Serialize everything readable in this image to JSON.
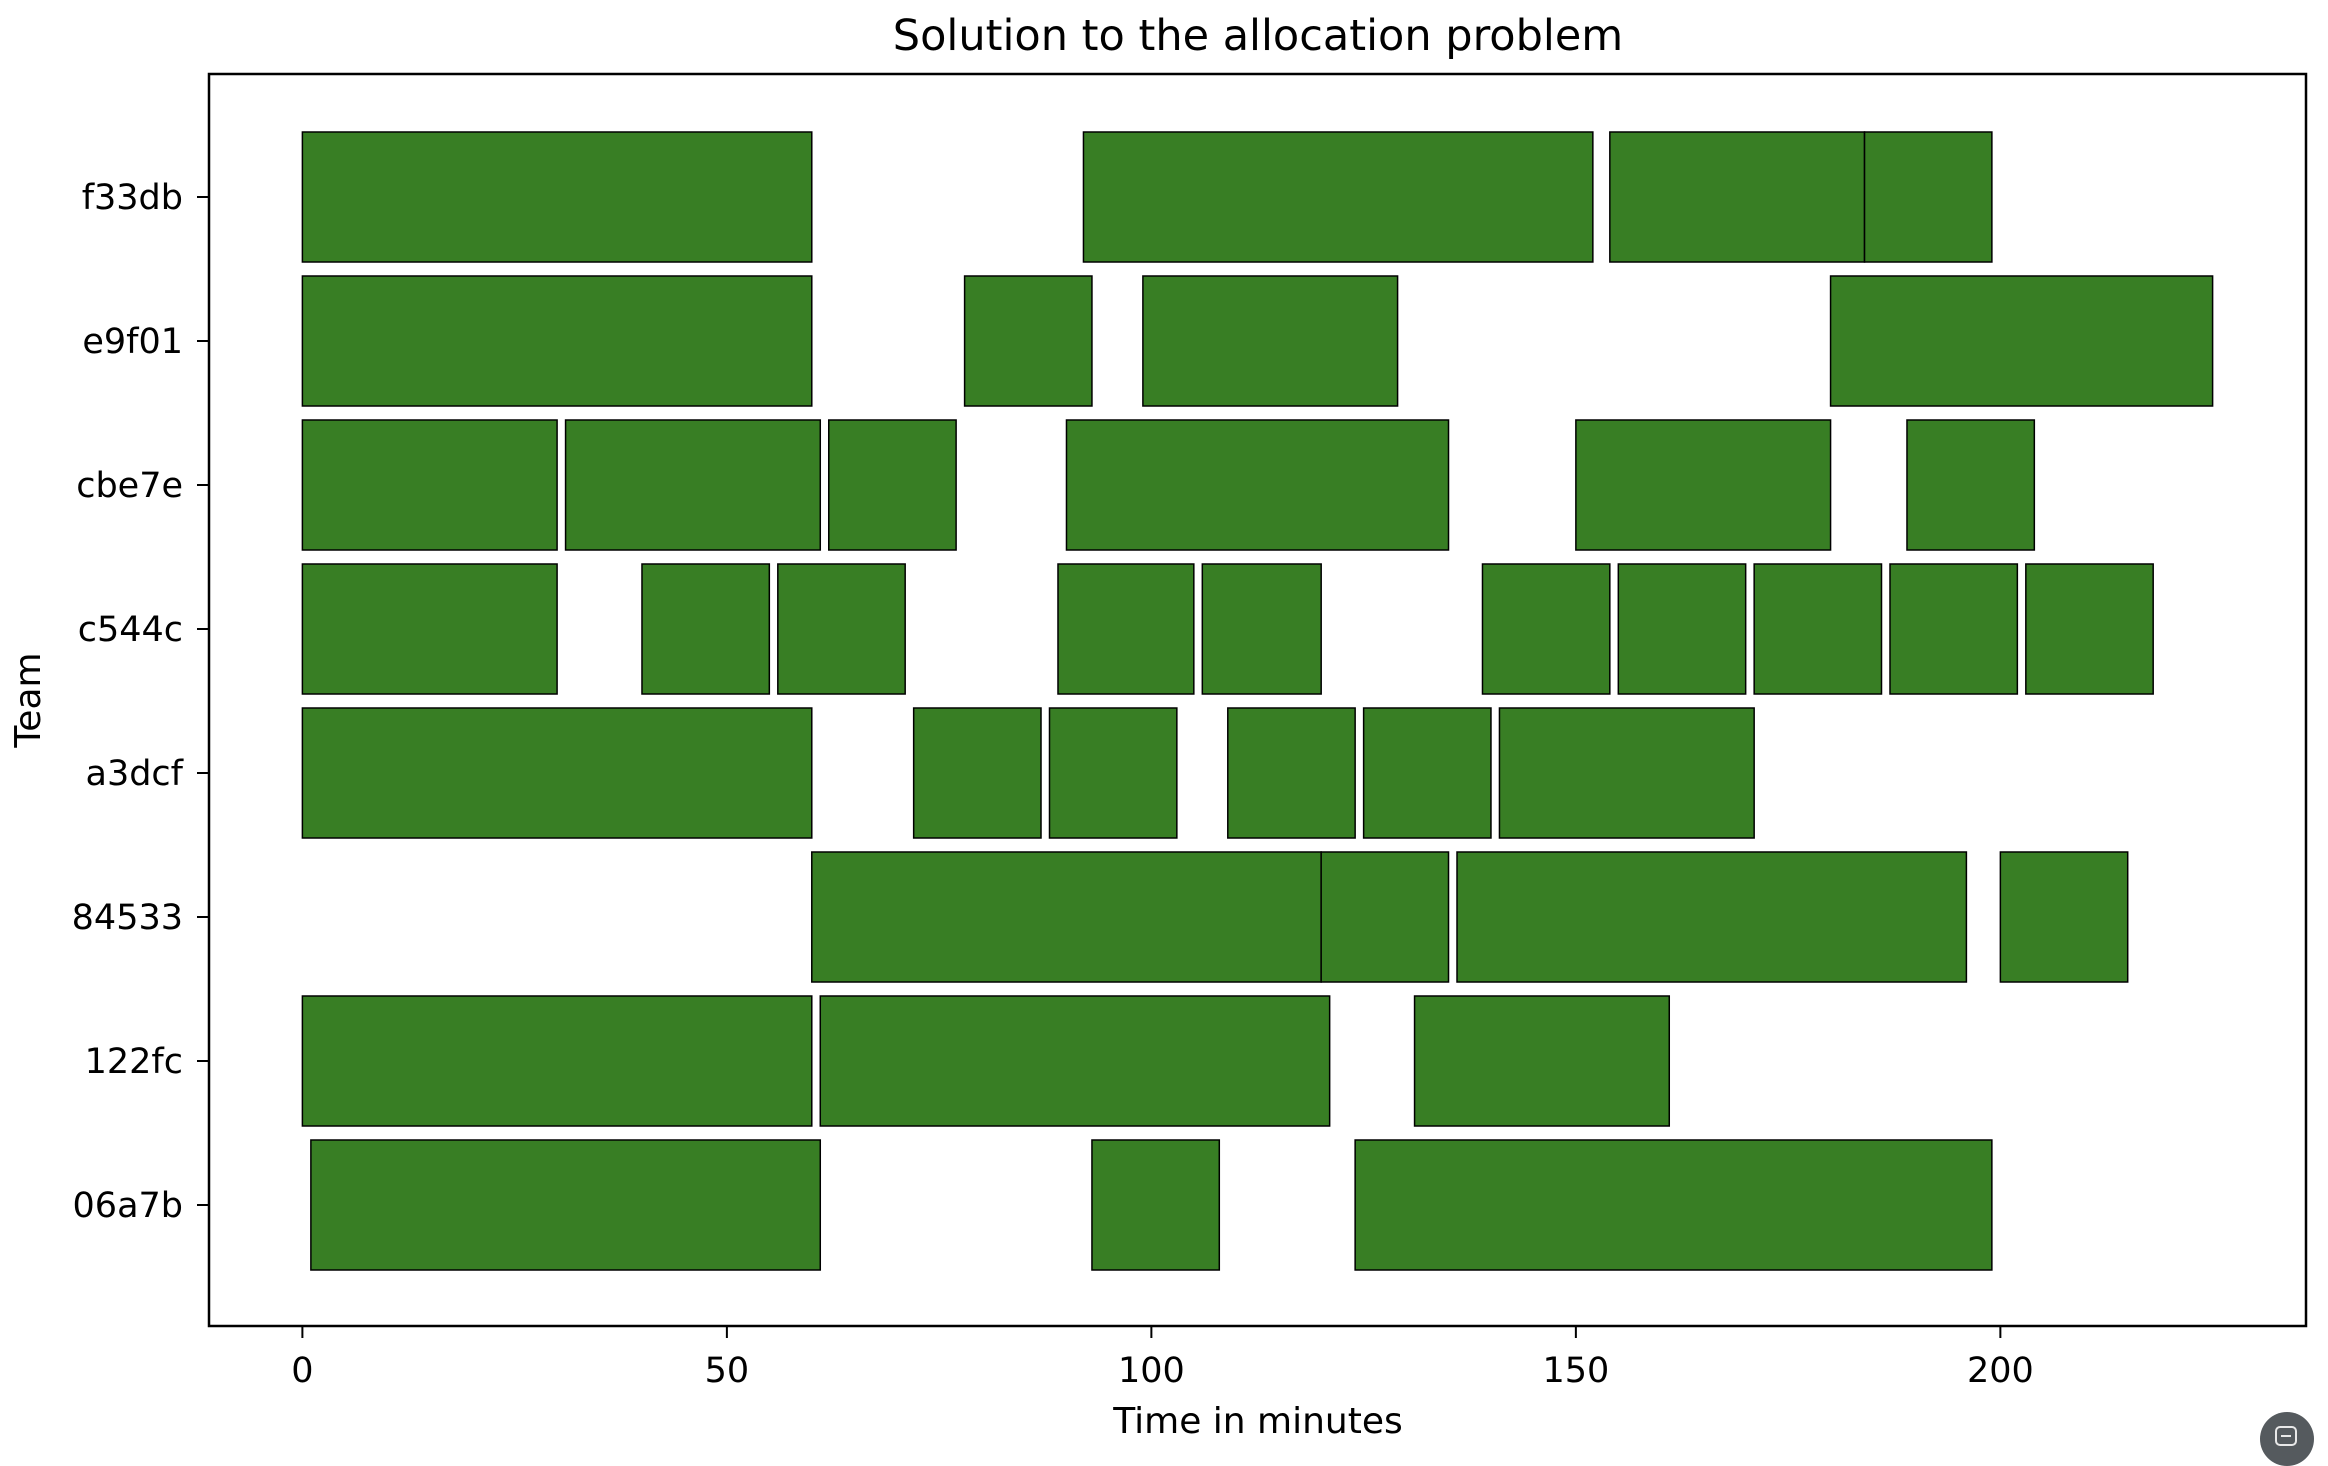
{
  "chart_data": {
    "type": "gantt",
    "title": "Solution to the allocation problem",
    "xlabel": "Time in minutes",
    "ylabel": "Team",
    "xlim": [
      -11,
      236
    ],
    "xticks": [
      0,
      50,
      100,
      150,
      200
    ],
    "categories": [
      "f33db",
      "e9f01",
      "cbe7e",
      "c544c",
      "a3dcf",
      "84533",
      "122fc",
      "06a7b"
    ],
    "bar_color": "#387e24",
    "edge_color": "#000000",
    "grid": false,
    "legend": "none",
    "tasks": [
      {
        "team": "f33db",
        "start": 0,
        "end": 60
      },
      {
        "team": "f33db",
        "start": 92,
        "end": 152
      },
      {
        "team": "f33db",
        "start": 154,
        "end": 184
      },
      {
        "team": "f33db",
        "start": 184,
        "end": 199
      },
      {
        "team": "e9f01",
        "start": 0,
        "end": 60
      },
      {
        "team": "e9f01",
        "start": 78,
        "end": 93
      },
      {
        "team": "e9f01",
        "start": 99,
        "end": 129
      },
      {
        "team": "e9f01",
        "start": 180,
        "end": 225
      },
      {
        "team": "cbe7e",
        "start": 0,
        "end": 30
      },
      {
        "team": "cbe7e",
        "start": 31,
        "end": 61
      },
      {
        "team": "cbe7e",
        "start": 62,
        "end": 77
      },
      {
        "team": "cbe7e",
        "start": 90,
        "end": 135
      },
      {
        "team": "cbe7e",
        "start": 150,
        "end": 180
      },
      {
        "team": "cbe7e",
        "start": 189,
        "end": 204
      },
      {
        "team": "c544c",
        "start": 0,
        "end": 30
      },
      {
        "team": "c544c",
        "start": 40,
        "end": 55
      },
      {
        "team": "c544c",
        "start": 56,
        "end": 71
      },
      {
        "team": "c544c",
        "start": 89,
        "end": 105
      },
      {
        "team": "c544c",
        "start": 106,
        "end": 120
      },
      {
        "team": "c544c",
        "start": 139,
        "end": 154
      },
      {
        "team": "c544c",
        "start": 155,
        "end": 170
      },
      {
        "team": "c544c",
        "start": 171,
        "end": 186
      },
      {
        "team": "c544c",
        "start": 187,
        "end": 202
      },
      {
        "team": "c544c",
        "start": 203,
        "end": 218
      },
      {
        "team": "a3dcf",
        "start": 0,
        "end": 60
      },
      {
        "team": "a3dcf",
        "start": 72,
        "end": 87
      },
      {
        "team": "a3dcf",
        "start": 88,
        "end": 103
      },
      {
        "team": "a3dcf",
        "start": 109,
        "end": 124
      },
      {
        "team": "a3dcf",
        "start": 125,
        "end": 140
      },
      {
        "team": "a3dcf",
        "start": 141,
        "end": 171
      },
      {
        "team": "84533",
        "start": 60,
        "end": 120
      },
      {
        "team": "84533",
        "start": 120,
        "end": 135
      },
      {
        "team": "84533",
        "start": 136,
        "end": 196
      },
      {
        "team": "84533",
        "start": 200,
        "end": 215
      },
      {
        "team": "122fc",
        "start": 0,
        "end": 60
      },
      {
        "team": "122fc",
        "start": 61,
        "end": 121
      },
      {
        "team": "122fc",
        "start": 131,
        "end": 161
      },
      {
        "team": "06a7b",
        "start": 1,
        "end": 61
      },
      {
        "team": "06a7b",
        "start": 93,
        "end": 108
      },
      {
        "team": "06a7b",
        "start": 124,
        "end": 199
      }
    ]
  }
}
